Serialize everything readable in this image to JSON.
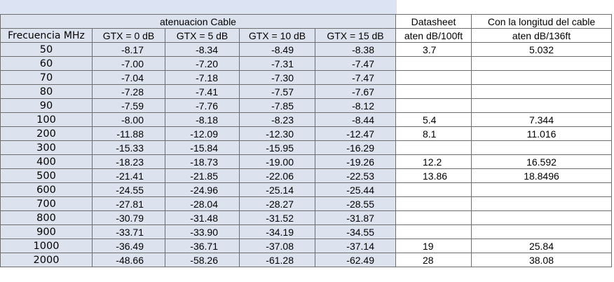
{
  "title": "atenuacion Cable",
  "datasheet": {
    "group": "Datasheet",
    "unit": "aten dB/100ft"
  },
  "length": {
    "group": "Con la longitud del cable",
    "unit": "aten dB/136ft"
  },
  "columns": [
    "Frecuencia MHz",
    "GTX = 0 dB",
    "GTX = 5 dB",
    "GTX = 10 dB",
    "GTX = 15 dB"
  ],
  "rows": [
    {
      "freq": "50",
      "g0": "-8.17",
      "g5": "-8.34",
      "g10": "-8.49",
      "g15": "-8.38",
      "ds": "3.7",
      "len": "5.032"
    },
    {
      "freq": "60",
      "g0": "-7.00",
      "g5": "-7.20",
      "g10": "-7.31",
      "g15": "-7.47",
      "ds": "",
      "len": ""
    },
    {
      "freq": "70",
      "g0": "-7.04",
      "g5": "-7.18",
      "g10": "-7.30",
      "g15": "-7.47",
      "ds": "",
      "len": ""
    },
    {
      "freq": "80",
      "g0": "-7.28",
      "g5": "-7.41",
      "g10": "-7.57",
      "g15": "-7.67",
      "ds": "",
      "len": ""
    },
    {
      "freq": "90",
      "g0": "-7.59",
      "g5": "-7.76",
      "g10": "-7.85",
      "g15": "-8.12",
      "ds": "",
      "len": ""
    },
    {
      "freq": "100",
      "g0": "-8.00",
      "g5": "-8.18",
      "g10": "-8.23",
      "g15": "-8.44",
      "ds": "5.4",
      "len": "7.344"
    },
    {
      "freq": "200",
      "g0": "-11.88",
      "g5": "-12.09",
      "g10": "-12.30",
      "g15": "-12.47",
      "ds": "8.1",
      "len": "11.016"
    },
    {
      "freq": "300",
      "g0": "-15.33",
      "g5": "-15.84",
      "g10": "-15.95",
      "g15": "-16.29",
      "ds": "",
      "len": ""
    },
    {
      "freq": "400",
      "g0": "-18.23",
      "g5": "-18.73",
      "g10": "-19.00",
      "g15": "-19.26",
      "ds": "12.2",
      "len": "16.592"
    },
    {
      "freq": "500",
      "g0": "-21.41",
      "g5": "-21.85",
      "g10": "-22.06",
      "g15": "-22.53",
      "ds": "13.86",
      "len": "18.8496"
    },
    {
      "freq": "600",
      "g0": "-24.55",
      "g5": "-24.96",
      "g10": "-25.14",
      "g15": "-25.44",
      "ds": "",
      "len": ""
    },
    {
      "freq": "700",
      "g0": "-27.81",
      "g5": "-28.04",
      "g10": "-28.27",
      "g15": "-28.55",
      "ds": "",
      "len": ""
    },
    {
      "freq": "800",
      "g0": "-30.79",
      "g5": "-31.48",
      "g10": "-31.52",
      "g15": "-31.87",
      "ds": "",
      "len": ""
    },
    {
      "freq": "900",
      "g0": "-33.71",
      "g5": "-33.90",
      "g10": "-34.19",
      "g15": "-34.55",
      "ds": "",
      "len": ""
    },
    {
      "freq": "1000",
      "g0": "-36.49",
      "g5": "-36.71",
      "g10": "-37.08",
      "g15": "-37.14",
      "ds": "19",
      "len": "25.84"
    },
    {
      "freq": "2000",
      "g0": "-48.66",
      "g5": "-58.26",
      "g10": "-61.28",
      "g15": "-62.49",
      "ds": "28",
      "len": "38.08"
    }
  ],
  "colors": {
    "shade": "#dde3ee",
    "band": "#dce4f4",
    "grid": "#6e6e6e"
  }
}
